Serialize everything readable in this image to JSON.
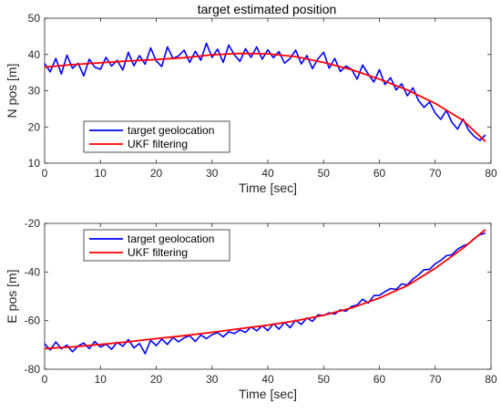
{
  "figure": {
    "title": "target estimated position"
  },
  "chart_data": [
    {
      "type": "line",
      "title": "target estimated position",
      "xlabel": "Time [sec]",
      "ylabel": "N pos [m]",
      "xlim": [
        0,
        80
      ],
      "ylim": [
        10,
        50
      ],
      "xticks": [
        "0",
        "10",
        "20",
        "30",
        "40",
        "50",
        "60",
        "70",
        "80"
      ],
      "yticks": [
        "10",
        "20",
        "30",
        "40",
        "50"
      ],
      "grid": false,
      "legend": "bottom-left",
      "series": [
        {
          "name": "target geolocation",
          "color": "#0000ff",
          "x": [
            0,
            1,
            2,
            3,
            4,
            5,
            6,
            7,
            8,
            9,
            10,
            11,
            12,
            13,
            14,
            15,
            16,
            17,
            18,
            19,
            20,
            21,
            22,
            23,
            24,
            25,
            26,
            27,
            28,
            29,
            30,
            31,
            32,
            33,
            34,
            35,
            36,
            37,
            38,
            39,
            40,
            41,
            42,
            43,
            44,
            45,
            46,
            47,
            48,
            49,
            50,
            51,
            52,
            53,
            54,
            55,
            56,
            57,
            58,
            59,
            60,
            61,
            62,
            63,
            64,
            65,
            66,
            67,
            68,
            69,
            70,
            71,
            72,
            73,
            74,
            75,
            76,
            77,
            78,
            79
          ],
          "y": [
            37.5,
            35.2,
            38.9,
            34.6,
            39.8,
            36.2,
            37.6,
            34.1,
            38.7,
            36.5,
            35.9,
            39.2,
            36.8,
            38.4,
            35.7,
            40.6,
            36.9,
            39.7,
            37.3,
            41.8,
            38.2,
            36.7,
            42.1,
            38.9,
            39.6,
            41.2,
            37.8,
            40.9,
            38.4,
            43.1,
            39.2,
            41.5,
            37.8,
            42.6,
            39.9,
            38.1,
            41.6,
            39.2,
            42.1,
            38.7,
            41.3,
            39.1,
            40.8,
            37.6,
            38.9,
            41.2,
            37.4,
            39.7,
            36.1,
            38.8,
            40.6,
            36.2,
            38.9,
            35.3,
            36.8,
            35.9,
            33.2,
            37.1,
            34.6,
            32.4,
            35.8,
            31.7,
            33.6,
            30.2,
            31.9,
            28.6,
            30.8,
            27.3,
            25.4,
            26.9,
            23.8,
            22.1,
            24.6,
            21.3,
            19.4,
            22.2,
            19.1,
            17.4,
            16.3,
            17.8
          ]
        },
        {
          "name": "UKF filtering",
          "color": "#ff0000",
          "x": [
            0,
            5,
            10,
            15,
            20,
            25,
            30,
            35,
            40,
            45,
            50,
            55,
            60,
            65,
            70,
            75,
            79
          ],
          "y": [
            36.5,
            37.2,
            37.7,
            38.2,
            38.6,
            39.1,
            39.9,
            40.3,
            40.2,
            39.4,
            37.8,
            35.8,
            33.2,
            30.2,
            26.5,
            21.8,
            16.0
          ]
        }
      ]
    },
    {
      "type": "line",
      "title": "",
      "xlabel": "Time [sec]",
      "ylabel": "E pos [m]",
      "xlim": [
        0,
        80
      ],
      "ylim": [
        -80,
        -20
      ],
      "xticks": [
        "0",
        "10",
        "20",
        "30",
        "40",
        "50",
        "60",
        "70",
        "80"
      ],
      "yticks": [
        "-80",
        "-60",
        "-40",
        "-20"
      ],
      "grid": false,
      "legend": "top-left",
      "series": [
        {
          "name": "target geolocation",
          "color": "#0000ff",
          "x": [
            0,
            1,
            2,
            3,
            4,
            5,
            6,
            7,
            8,
            9,
            10,
            11,
            12,
            13,
            14,
            15,
            16,
            17,
            18,
            19,
            20,
            21,
            22,
            23,
            24,
            25,
            26,
            27,
            28,
            29,
            30,
            31,
            32,
            33,
            34,
            35,
            36,
            37,
            38,
            39,
            40,
            41,
            42,
            43,
            44,
            45,
            46,
            47,
            48,
            49,
            50,
            51,
            52,
            53,
            54,
            55,
            56,
            57,
            58,
            59,
            60,
            61,
            62,
            63,
            64,
            65,
            66,
            67,
            68,
            69,
            70,
            71,
            72,
            73,
            74,
            75,
            76,
            77,
            78,
            79
          ],
          "y": [
            -69.5,
            -72.1,
            -68.8,
            -71.6,
            -70.1,
            -72.8,
            -70.4,
            -69.2,
            -71.5,
            -68.6,
            -70.9,
            -69.7,
            -71.8,
            -68.9,
            -70.6,
            -67.8,
            -71.2,
            -69.4,
            -73.6,
            -68.1,
            -70.3,
            -67.6,
            -69.8,
            -66.9,
            -68.7,
            -67.1,
            -66.2,
            -68.6,
            -65.9,
            -67.4,
            -65.8,
            -64.9,
            -66.7,
            -64.6,
            -65.3,
            -63.8,
            -64.9,
            -62.6,
            -64.2,
            -62.1,
            -64.1,
            -61.3,
            -63.5,
            -60.7,
            -62.9,
            -59.8,
            -61.6,
            -58.9,
            -60.3,
            -57.6,
            -57.9,
            -56.8,
            -57.3,
            -55.6,
            -56.1,
            -54.2,
            -53.6,
            -51.2,
            -52.8,
            -49.7,
            -49.6,
            -48.1,
            -46.8,
            -47.2,
            -44.9,
            -45.3,
            -42.9,
            -41.2,
            -39.1,
            -38.9,
            -36.6,
            -35.2,
            -33.3,
            -32.9,
            -30.6,
            -29.3,
            -28.4,
            -26.2,
            -24.7,
            -24.0
          ]
        },
        {
          "name": "UKF filtering",
          "color": "#ff0000",
          "x": [
            0,
            5,
            10,
            15,
            20,
            25,
            30,
            35,
            40,
            45,
            50,
            55,
            60,
            65,
            70,
            75,
            79
          ],
          "y": [
            -71.5,
            -70.8,
            -69.8,
            -68.7,
            -67.4,
            -66.2,
            -64.8,
            -63.3,
            -61.9,
            -60.1,
            -57.8,
            -54.8,
            -50.7,
            -45.6,
            -38.5,
            -30.2,
            -22.5
          ]
        }
      ]
    }
  ]
}
